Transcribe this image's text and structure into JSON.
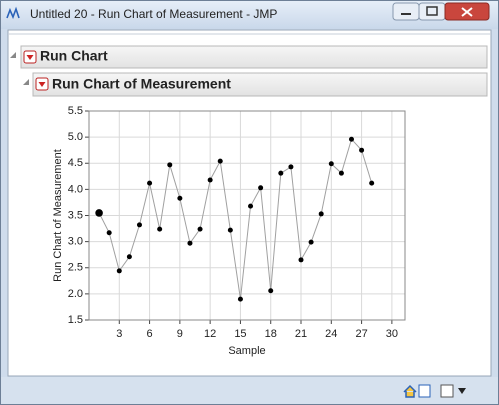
{
  "window": {
    "title": "Untitled 20 - Run Chart of Measurement - JMP"
  },
  "outline": {
    "outer": "Run Chart",
    "inner": "Run Chart of Measurement"
  },
  "chart_data": {
    "type": "line",
    "x_label": "Sample",
    "y_label": "Run Chart of Measurement",
    "x": [
      1,
      2,
      3,
      4,
      5,
      6,
      7,
      8,
      9,
      10,
      11,
      12,
      13,
      14,
      15,
      16,
      17,
      18,
      19,
      20,
      21,
      22,
      23,
      24,
      25,
      26,
      27,
      28
    ],
    "values": [
      3.55,
      3.17,
      2.44,
      2.71,
      3.32,
      4.12,
      3.24,
      4.47,
      3.83,
      2.97,
      3.24,
      4.18,
      4.54,
      3.22,
      1.9,
      3.68,
      4.03,
      2.06,
      4.31,
      4.43,
      2.65,
      2.99,
      3.53,
      4.49,
      4.31,
      4.96,
      4.75,
      4.12
    ],
    "line_color": "#a0a0a0",
    "marker_color": "#000000",
    "xlim": [
      0,
      31.3
    ],
    "ylim": [
      1.5,
      5.5
    ],
    "xticks": [
      3,
      6,
      9,
      12,
      15,
      18,
      21,
      24,
      27,
      30
    ],
    "yticks": [
      1.5,
      {
        "value": 2,
        "label": "2.0"
      },
      2.5,
      {
        "value": 3,
        "label": "3.0"
      },
      3.5,
      {
        "value": 4,
        "label": "4.0"
      },
      4.5,
      {
        "value": 5,
        "label": "5.0"
      },
      5.5
    ],
    "grid": true
  }
}
